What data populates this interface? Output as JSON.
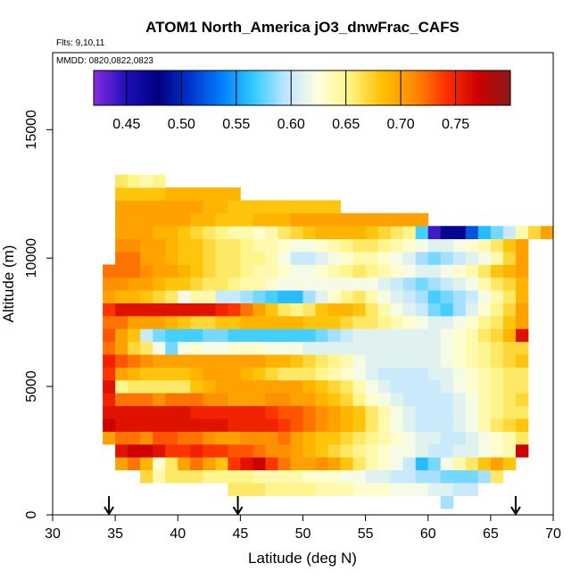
{
  "chart_data": {
    "type": "heatmap",
    "title": "ATOM1 North_America jO3_dnwFrac_CAFS",
    "flights_label": "Flts: 9,10,11",
    "dates_label": "MMDD: 0820,0822,0823",
    "xlabel": "Latitude (deg N)",
    "ylabel": "Altitude (m)",
    "xlim": [
      30,
      70
    ],
    "ylim": [
      0,
      18000
    ],
    "x_ticks": [
      "30",
      "35",
      "40",
      "45",
      "50",
      "55",
      "60",
      "65",
      "70"
    ],
    "y_ticks": [
      "0",
      "5000",
      "10000",
      "15000"
    ],
    "colorbar": {
      "range": [
        0.42,
        0.8
      ],
      "ticks": [
        "0.45",
        "0.50",
        "0.55",
        "0.60",
        "0.65",
        "0.70",
        "0.75"
      ],
      "colors": [
        "#8a2be2",
        "#1f10b8",
        "#000080",
        "#0033cc",
        "#007fff",
        "#33ccff",
        "#bfe6ff",
        "#ffffe0",
        "#fff380",
        "#ffc000",
        "#ff8c00",
        "#ff3000",
        "#cc0000",
        "#8b1a1a"
      ]
    },
    "flight_markers_lat": [
      34.5,
      44.8,
      67.0
    ],
    "bin_width_deg": 1.0,
    "bin_height_m": 500,
    "rows": [
      {
        "alt": 500,
        "lat_start": 61,
        "values": [
          0.59
        ]
      },
      {
        "alt": 1000,
        "lat_start": 44,
        "values": [
          0.66,
          0.66,
          0.66,
          0.65,
          0.65,
          0.65,
          0.65,
          0.64,
          0.64,
          0.64,
          0.63,
          0.63,
          0.63,
          0.62,
          0.62,
          0.62,
          0.61,
          0.61,
          0.6,
          0.6
        ]
      },
      {
        "alt": 1500,
        "lat_start": 37,
        "values": [
          0.67,
          0.64,
          0.66,
          0.66,
          0.66,
          0.65,
          0.65,
          0.65,
          0.65,
          0.64,
          0.64,
          0.64,
          0.64,
          0.63,
          0.63,
          0.63,
          0.62,
          0.62,
          0.61,
          0.61,
          0.6,
          0.6,
          0.59,
          0.59,
          0.58,
          0.58,
          0.58,
          0.59,
          0.66
        ]
      },
      {
        "alt": 2000,
        "lat_start": 35,
        "values": [
          0.7,
          0.72,
          0.69,
          0.63,
          0.66,
          0.7,
          0.72,
          0.7,
          0.68,
          0.74,
          0.76,
          0.77,
          0.74,
          0.72,
          0.7,
          0.7,
          0.71,
          0.7,
          0.68,
          0.66,
          0.64,
          0.63,
          0.62,
          0.6,
          0.56,
          0.58,
          0.62,
          0.64,
          0.66,
          0.68,
          0.7,
          0.68
        ]
      },
      {
        "alt": 2500,
        "lat_start": 35,
        "values": [
          0.76,
          0.77,
          0.77,
          0.76,
          0.74,
          0.74,
          0.75,
          0.74,
          0.74,
          0.73,
          0.73,
          0.72,
          0.71,
          0.71,
          0.7,
          0.69,
          0.68,
          0.67,
          0.66,
          0.65,
          0.64,
          0.63,
          0.62,
          0.62,
          0.61,
          0.6,
          0.6,
          0.61,
          0.61,
          0.62,
          0.63,
          0.64,
          0.77
        ]
      },
      {
        "alt": 3000,
        "lat_start": 34,
        "values": [
          0.7,
          0.72,
          0.72,
          0.71,
          0.73,
          0.73,
          0.72,
          0.72,
          0.71,
          0.7,
          0.7,
          0.71,
          0.71,
          0.71,
          0.72,
          0.7,
          0.69,
          0.68,
          0.68,
          0.67,
          0.66,
          0.65,
          0.64,
          0.63,
          0.62,
          0.61,
          0.61,
          0.6,
          0.6,
          0.61,
          0.62,
          0.63,
          0.64,
          0.66
        ]
      },
      {
        "alt": 3500,
        "lat_start": 34,
        "values": [
          0.77,
          0.76,
          0.76,
          0.76,
          0.76,
          0.76,
          0.76,
          0.76,
          0.76,
          0.76,
          0.75,
          0.75,
          0.75,
          0.75,
          0.74,
          0.73,
          0.72,
          0.71,
          0.7,
          0.69,
          0.68,
          0.66,
          0.64,
          0.62,
          0.61,
          0.6,
          0.6,
          0.6,
          0.61,
          0.62,
          0.64,
          0.66,
          0.67,
          0.68
        ]
      },
      {
        "alt": 4000,
        "lat_start": 34,
        "values": [
          0.76,
          0.76,
          0.76,
          0.76,
          0.76,
          0.76,
          0.76,
          0.75,
          0.75,
          0.75,
          0.75,
          0.75,
          0.75,
          0.74,
          0.73,
          0.73,
          0.72,
          0.71,
          0.7,
          0.69,
          0.68,
          0.66,
          0.64,
          0.62,
          0.61,
          0.6,
          0.6,
          0.6,
          0.61,
          0.62,
          0.64,
          0.65,
          0.66,
          0.66
        ]
      },
      {
        "alt": 4500,
        "lat_start": 34,
        "values": [
          0.75,
          0.72,
          0.72,
          0.72,
          0.71,
          0.72,
          0.72,
          0.72,
          0.71,
          0.71,
          0.7,
          0.7,
          0.7,
          0.71,
          0.71,
          0.7,
          0.7,
          0.69,
          0.68,
          0.67,
          0.65,
          0.63,
          0.62,
          0.61,
          0.6,
          0.6,
          0.6,
          0.6,
          0.61,
          0.62,
          0.64,
          0.65,
          0.66,
          0.67
        ]
      },
      {
        "alt": 5000,
        "lat_start": 34,
        "values": [
          0.76,
          0.65,
          0.66,
          0.66,
          0.66,
          0.66,
          0.66,
          0.68,
          0.69,
          0.7,
          0.7,
          0.7,
          0.7,
          0.7,
          0.7,
          0.7,
          0.69,
          0.68,
          0.67,
          0.66,
          0.64,
          0.62,
          0.61,
          0.6,
          0.6,
          0.6,
          0.6,
          0.61,
          0.62,
          0.63,
          0.64,
          0.65,
          0.66,
          0.66
        ]
      },
      {
        "alt": 5500,
        "lat_start": 34,
        "values": [
          0.74,
          0.7,
          0.69,
          0.68,
          0.68,
          0.68,
          0.68,
          0.69,
          0.7,
          0.7,
          0.7,
          0.69,
          0.68,
          0.67,
          0.66,
          0.66,
          0.66,
          0.65,
          0.64,
          0.63,
          0.62,
          0.61,
          0.6,
          0.6,
          0.6,
          0.6,
          0.61,
          0.61,
          0.62,
          0.63,
          0.64,
          0.65,
          0.66,
          0.66
        ]
      },
      {
        "alt": 6000,
        "lat_start": 34,
        "values": [
          0.75,
          0.73,
          0.72,
          0.71,
          0.7,
          0.7,
          0.7,
          0.7,
          0.7,
          0.7,
          0.7,
          0.7,
          0.7,
          0.69,
          0.69,
          0.68,
          0.67,
          0.66,
          0.65,
          0.64,
          0.62,
          0.61,
          0.61,
          0.61,
          0.61,
          0.61,
          0.61,
          0.62,
          0.63,
          0.64,
          0.65,
          0.66,
          0.67,
          0.68
        ]
      },
      {
        "alt": 6500,
        "lat_start": 34,
        "values": [
          0.72,
          0.7,
          0.67,
          0.66,
          0.62,
          0.58,
          0.62,
          0.63,
          0.62,
          0.62,
          0.63,
          0.63,
          0.63,
          0.62,
          0.62,
          0.62,
          0.61,
          0.61,
          0.61,
          0.61,
          0.61,
          0.61,
          0.61,
          0.61,
          0.61,
          0.61,
          0.61,
          0.62,
          0.63,
          0.64,
          0.65,
          0.66,
          0.67,
          0.67
        ]
      },
      {
        "alt": 7000,
        "lat_start": 34,
        "values": [
          0.73,
          0.7,
          0.68,
          0.6,
          0.58,
          0.57,
          0.57,
          0.57,
          0.58,
          0.58,
          0.57,
          0.57,
          0.57,
          0.57,
          0.57,
          0.57,
          0.57,
          0.58,
          0.59,
          0.6,
          0.61,
          0.61,
          0.61,
          0.61,
          0.61,
          0.61,
          0.61,
          0.62,
          0.63,
          0.64,
          0.66,
          0.67,
          0.69,
          0.76
        ]
      },
      {
        "alt": 7500,
        "lat_start": 34,
        "values": [
          0.72,
          0.72,
          0.7,
          0.7,
          0.7,
          0.69,
          0.68,
          0.67,
          0.67,
          0.68,
          0.68,
          0.69,
          0.69,
          0.69,
          0.69,
          0.69,
          0.68,
          0.68,
          0.68,
          0.67,
          0.66,
          0.66,
          0.65,
          0.64,
          0.63,
          0.62,
          0.61,
          0.61,
          0.62,
          0.63,
          0.65,
          0.66,
          0.68,
          0.7
        ]
      },
      {
        "alt": 8000,
        "lat_start": 34,
        "values": [
          0.74,
          0.76,
          0.76,
          0.76,
          0.76,
          0.76,
          0.76,
          0.76,
          0.76,
          0.75,
          0.74,
          0.72,
          0.7,
          0.68,
          0.66,
          0.65,
          0.66,
          0.68,
          0.69,
          0.69,
          0.68,
          0.66,
          0.64,
          0.62,
          0.61,
          0.6,
          0.58,
          0.57,
          0.59,
          0.61,
          0.63,
          0.65,
          0.67,
          0.7
        ]
      },
      {
        "alt": 8500,
        "lat_start": 34,
        "values": [
          0.7,
          0.69,
          0.69,
          0.68,
          0.67,
          0.66,
          0.62,
          0.64,
          0.64,
          0.6,
          0.6,
          0.59,
          0.58,
          0.57,
          0.56,
          0.56,
          0.59,
          0.61,
          0.63,
          0.65,
          0.66,
          0.64,
          0.62,
          0.61,
          0.6,
          0.59,
          0.57,
          0.58,
          0.59,
          0.6,
          0.62,
          0.64,
          0.66,
          0.69
        ]
      },
      {
        "alt": 9000,
        "lat_start": 34,
        "values": [
          0.71,
          0.71,
          0.7,
          0.7,
          0.69,
          0.68,
          0.68,
          0.67,
          0.66,
          0.66,
          0.65,
          0.64,
          0.64,
          0.63,
          0.62,
          0.62,
          0.62,
          0.62,
          0.62,
          0.62,
          0.62,
          0.62,
          0.61,
          0.6,
          0.59,
          0.58,
          0.59,
          0.6,
          0.61,
          0.62,
          0.64,
          0.66,
          0.67,
          0.69
        ]
      },
      {
        "alt": 9500,
        "lat_start": 34,
        "values": [
          0.72,
          0.72,
          0.72,
          0.71,
          0.7,
          0.7,
          0.69,
          0.68,
          0.67,
          0.66,
          0.66,
          0.65,
          0.64,
          0.64,
          0.63,
          0.62,
          0.62,
          0.63,
          0.64,
          0.65,
          0.66,
          0.65,
          0.64,
          0.63,
          0.62,
          0.61,
          0.61,
          0.62,
          0.63,
          0.64,
          0.66,
          0.68,
          0.69,
          0.7
        ]
      },
      {
        "alt": 10000,
        "lat_start": 35,
        "values": [
          0.72,
          0.72,
          0.7,
          0.7,
          0.69,
          0.68,
          0.68,
          0.67,
          0.66,
          0.66,
          0.65,
          0.65,
          0.64,
          0.62,
          0.6,
          0.6,
          0.61,
          0.62,
          0.63,
          0.64,
          0.64,
          0.63,
          0.62,
          0.61,
          0.59,
          0.58,
          0.59,
          0.6,
          0.61,
          0.62,
          0.64,
          0.67,
          0.7
        ]
      },
      {
        "alt": 10500,
        "lat_start": 35,
        "values": [
          0.71,
          0.71,
          0.7,
          0.7,
          0.69,
          0.68,
          0.68,
          0.67,
          0.66,
          0.66,
          0.65,
          0.64,
          0.64,
          0.63,
          0.62,
          0.62,
          0.63,
          0.64,
          0.65,
          0.66,
          0.66,
          0.65,
          0.64,
          0.63,
          0.62,
          0.61,
          0.61,
          0.62,
          0.63,
          0.64,
          0.66,
          0.68,
          0.7
        ]
      },
      {
        "alt": 11000,
        "lat_start": 35,
        "values": [
          0.7,
          0.7,
          0.7,
          0.69,
          0.69,
          0.68,
          0.67,
          0.66,
          0.65,
          0.64,
          0.64,
          0.63,
          0.64,
          0.66,
          0.67,
          0.68,
          0.69,
          0.69,
          0.69,
          0.69,
          0.68,
          0.67,
          0.66,
          0.65,
          0.57,
          0.44,
          0.47,
          0.47,
          0.52,
          0.56,
          0.58,
          0.6,
          0.64,
          0.67,
          0.7
        ]
      },
      {
        "alt": 11500,
        "lat_start": 35,
        "values": [
          0.7,
          0.7,
          0.7,
          0.7,
          0.7,
          0.7,
          0.69,
          0.69,
          0.68,
          0.68,
          0.68,
          0.69,
          0.69,
          0.69,
          0.7,
          0.7,
          0.7,
          0.7,
          0.7,
          0.7,
          0.7,
          0.7,
          0.7,
          0.7,
          0.7
        ]
      },
      {
        "alt": 12000,
        "lat_start": 35,
        "values": [
          0.7,
          0.7,
          0.7,
          0.7,
          0.7,
          0.7,
          0.7,
          0.69,
          0.69,
          0.68,
          0.68,
          0.68,
          0.68,
          0.68,
          0.68,
          0.68,
          0.68,
          0.68
        ]
      },
      {
        "alt": 12500,
        "lat_start": 35,
        "values": [
          0.68,
          0.68,
          0.68,
          0.68,
          0.69,
          0.69,
          0.69,
          0.69,
          0.69,
          0.69
        ]
      },
      {
        "alt": 13000,
        "lat_start": 35,
        "values": [
          0.66,
          0.65,
          0.64,
          0.65
        ]
      }
    ]
  }
}
